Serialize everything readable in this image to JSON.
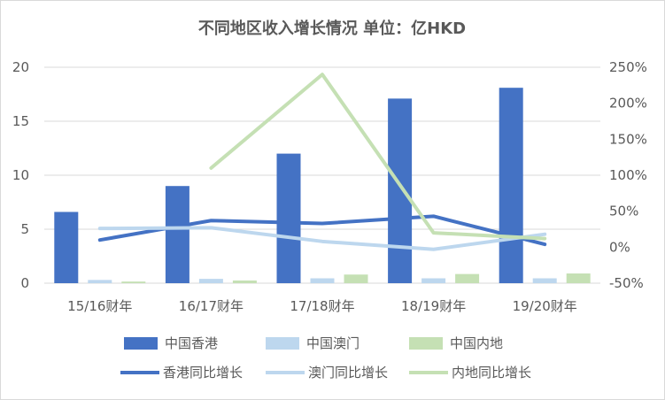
{
  "chart_data": {
    "type": "bar",
    "title": "不同地区收入增长情况 单位：亿HKD",
    "categories": [
      "15/16财年",
      "16/17财年",
      "17/18财年",
      "18/19财年",
      "19/20财年"
    ],
    "y_left": {
      "ylim": [
        0,
        20
      ],
      "ticks": [
        "0",
        "5",
        "10",
        "15",
        "20"
      ],
      "tick_values": [
        0,
        5,
        10,
        15,
        20
      ]
    },
    "y_right": {
      "ylim": [
        -50,
        250
      ],
      "ticks": [
        "-50%",
        "0%",
        "50%",
        "100%",
        "150%",
        "200%",
        "250%"
      ],
      "tick_values": [
        -50,
        0,
        50,
        100,
        150,
        200,
        250
      ]
    },
    "bar_series": [
      {
        "name": "中国香港",
        "color": "#4472C4",
        "values": [
          6.6,
          9.0,
          12.0,
          17.1,
          18.1
        ]
      },
      {
        "name": "中国澳门",
        "color": "#BDD7EE",
        "values": [
          0.3,
          0.4,
          0.45,
          0.45,
          0.45
        ]
      },
      {
        "name": "中国内地",
        "color": "#C5E0B4",
        "values": [
          0.15,
          0.25,
          0.8,
          0.85,
          0.9
        ]
      }
    ],
    "line_series": [
      {
        "name": "香港同比增长",
        "color": "#4472C4",
        "values": [
          10,
          37,
          33,
          43,
          4
        ],
        "start": 0
      },
      {
        "name": "澳门同比增长",
        "color": "#BDD7EE",
        "values": [
          26,
          27,
          8,
          -3,
          18
        ],
        "start": 0
      },
      {
        "name": "内地同比增长",
        "color": "#C5E0B4",
        "values": [
          110,
          240,
          20,
          12
        ],
        "start": 1
      }
    ],
    "grid": true,
    "legend_position": "bottom"
  }
}
